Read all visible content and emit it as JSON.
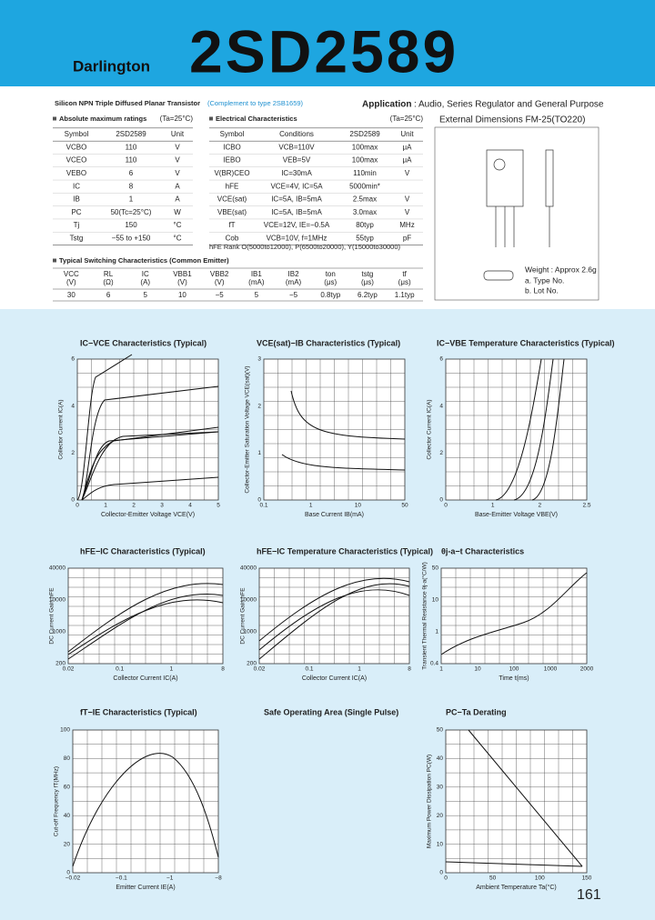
{
  "header": {
    "series": "Darlington",
    "part": "2SD2589"
  },
  "subtitle": "Silicon NPN Triple Diffused Planar Transistor",
  "complement": "(Complement to type 2SB1659)",
  "application": {
    "label": "Application",
    "text": ": Audio, Series Regulator and General Purpose"
  },
  "abs_max": {
    "title": "Absolute maximum ratings",
    "condition": "(Ta=25°C)",
    "header": [
      "Symbol",
      "2SD2589",
      "Unit"
    ],
    "rows": [
      [
        "VCBO",
        "110",
        "V"
      ],
      [
        "VCEO",
        "110",
        "V"
      ],
      [
        "VEBO",
        "6",
        "V"
      ],
      [
        "IC",
        "8",
        "A"
      ],
      [
        "IB",
        "1",
        "A"
      ],
      [
        "PC",
        "50(Tc=25°C)",
        "W"
      ],
      [
        "Tj",
        "150",
        "°C"
      ],
      [
        "Tstg",
        "−55 to +150",
        "°C"
      ]
    ]
  },
  "electrical": {
    "title": "Electrical Characteristics",
    "condition": "(Ta=25°C)",
    "header": [
      "Symbol",
      "Conditions",
      "2SD2589",
      "Unit"
    ],
    "rows": [
      [
        "ICBO",
        "VCB=110V",
        "100max",
        "μA"
      ],
      [
        "IEBO",
        "VEB=5V",
        "100max",
        "μA"
      ],
      [
        "V(BR)CEO",
        "IC=30mA",
        "110min",
        "V"
      ],
      [
        "hFE",
        "VCE=4V, IC=5A",
        "5000min*"
      ],
      [
        "VCE(sat)",
        "IC=5A, IB=5mA",
        "2.5max",
        "V"
      ],
      [
        "VBE(sat)",
        "IC=5A, IB=5mA",
        "3.0max",
        "V"
      ],
      [
        "fT",
        "VCE=12V, IE=−0.5A",
        "80typ",
        "MHz"
      ],
      [
        "Cob",
        "VCB=10V, f=1MHz",
        "55typ",
        "pF"
      ]
    ],
    "rank": "hFE Rank  O(5000to12000), P(6500to20000), Y(15000to30000)"
  },
  "switching": {
    "title": "Typical Switching Characteristics (Common Emitter)",
    "header": [
      [
        "VCC",
        "(V)"
      ],
      [
        "RL",
        "(Ω)"
      ],
      [
        "IC",
        "(A)"
      ],
      [
        "VBB1",
        "(V)"
      ],
      [
        "VBB2",
        "(V)"
      ],
      [
        "IB1",
        "(mA)"
      ],
      [
        "IB2",
        "(mA)"
      ],
      [
        "ton",
        "(μs)"
      ],
      [
        "tstg",
        "(μs)"
      ],
      [
        "tf",
        "(μs)"
      ]
    ],
    "row": [
      "30",
      "6",
      "5",
      "10",
      "−5",
      "5",
      "−5",
      "0.8typ",
      "6.2typ",
      "1.1typ"
    ]
  },
  "dimensions": {
    "title": "External Dimensions FM-25(TO220)",
    "notes": [
      "Weight : Approx 2.6g",
      "a. Type No.",
      "b. Lot No."
    ]
  },
  "charts": [
    {
      "title": "IC−VCE Characteristics (Typical)",
      "xlabel": "Collector-Emitter Voltage VCE(V)",
      "ylabel": "Collector Current IC(A)",
      "xticks": [
        "0",
        "1",
        "2",
        "3",
        "4",
        "5"
      ],
      "yticks": [
        "0",
        "2",
        "4",
        "6"
      ]
    },
    {
      "title": "VCE(sat)−IB Characteristics (Typical)",
      "xlabel": "Base Current IB(mA)",
      "ylabel": "Collector-Emitter Saturation Voltage VCE(sat)(V)",
      "xticks": [
        "0.1",
        "1",
        "10",
        "50"
      ],
      "yticks": [
        "0",
        "1",
        "2",
        "3"
      ]
    },
    {
      "title": "IC−VBE Temperature Characteristics (Typical)",
      "xlabel": "Base-Emitter Voltage VBE(V)",
      "ylabel": "Collector Current IC(A)",
      "xticks": [
        "0",
        "1",
        "2",
        "2.5"
      ],
      "yticks": [
        "0",
        "2",
        "4",
        "6"
      ]
    },
    {
      "title": "hFE−IC Characteristics (Typical)",
      "xlabel": "Collector Current IC(A)",
      "ylabel": "DC Current Gain hFE",
      "xticks": [
        "0.02",
        "0.1",
        "1",
        "8"
      ],
      "yticks": [
        "200",
        "1000",
        "10000",
        "40000"
      ]
    },
    {
      "title": "hFE−IC Temperature Characteristics (Typical)",
      "xlabel": "Collector Current IC(A)",
      "ylabel": "DC Current Gain hFE",
      "xticks": [
        "0.02",
        "0.1",
        "1",
        "8"
      ],
      "yticks": [
        "200",
        "1000",
        "10000",
        "40000"
      ]
    },
    {
      "title": "θj-a−t Characteristics",
      "xlabel": "Time t(ms)",
      "ylabel": "Transient Thermal Resistance θj-a(°C/W)",
      "xticks": [
        "1",
        "10",
        "100",
        "1000",
        "2000"
      ],
      "yticks": [
        "0.4",
        "1",
        "10",
        "50"
      ]
    },
    {
      "title": "fT−IE Characteristics (Typical)",
      "xlabel": "Emitter Current IE(A)",
      "ylabel": "Cut-off Frequency fT(MHz)",
      "xticks": [
        "−0.02",
        "−0.1",
        "−1",
        "−8"
      ],
      "yticks": [
        "0",
        "20",
        "40",
        "60",
        "80",
        "100"
      ]
    },
    {
      "title": "Safe Operating Area (Single Pulse)"
    },
    {
      "title": "PC−Ta Derating",
      "xlabel": "Ambient Temperature Ta(°C)",
      "ylabel": "Maximum Power Dissipation PC(W)",
      "xticks": [
        "0",
        "50",
        "100",
        "150"
      ],
      "yticks": [
        "0",
        "10",
        "20",
        "30",
        "40",
        "50"
      ]
    }
  ],
  "page_number": "161"
}
